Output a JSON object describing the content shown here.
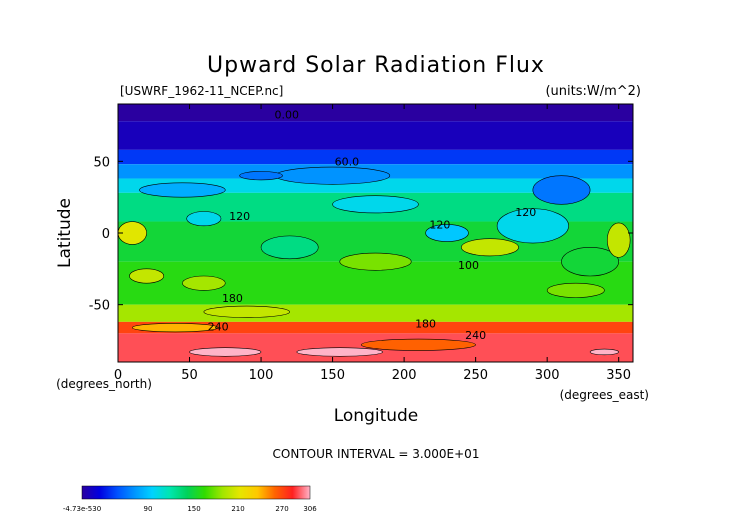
{
  "chart_data": {
    "type": "heatmap",
    "title": "Upward Solar Radiation Flux",
    "file_label": "[USWRF_1962-11_NCEP.nc]",
    "units_label": "(units:W/m^2)",
    "xlabel": "Longitude",
    "ylabel": "Latitude",
    "x_unit_label": "(degrees_east)",
    "y_unit_label": "(degrees_north)",
    "xlim": [
      0,
      360
    ],
    "ylim": [
      -90,
      90
    ],
    "x_ticks": [
      0,
      50,
      100,
      150,
      200,
      250,
      300,
      350
    ],
    "y_ticks": [
      50,
      0,
      -50
    ],
    "contour_interval_text": "CONTOUR INTERVAL = 3.000E+01",
    "contour_labels": [
      {
        "text": "0.00",
        "lon": 118,
        "lat": 80
      },
      {
        "text": "60.0",
        "lon": 160,
        "lat": 47
      },
      {
        "text": "120",
        "lon": 85,
        "lat": 9
      },
      {
        "text": "120",
        "lon": 285,
        "lat": 12
      },
      {
        "text": "120",
        "lon": 225,
        "lat": 3
      },
      {
        "text": "100",
        "lon": 245,
        "lat": -25
      },
      {
        "text": "180",
        "lon": 80,
        "lat": -48
      },
      {
        "text": "180",
        "lon": 215,
        "lat": -66
      },
      {
        "text": "240",
        "lon": 70,
        "lat": -68
      },
      {
        "text": "240",
        "lon": 250,
        "lat": -74
      }
    ],
    "lat_bands": [
      {
        "lat_top": 90,
        "lat_bot": 78,
        "value": 0
      },
      {
        "lat_top": 78,
        "lat_bot": 58,
        "value": 10
      },
      {
        "lat_top": 58,
        "lat_bot": 48,
        "value": 40
      },
      {
        "lat_top": 48,
        "lat_bot": 38,
        "value": 70
      },
      {
        "lat_top": 38,
        "lat_bot": 28,
        "value": 100
      },
      {
        "lat_top": 28,
        "lat_bot": 8,
        "value": 130
      },
      {
        "lat_top": 8,
        "lat_bot": -20,
        "value": 150
      },
      {
        "lat_top": -20,
        "lat_bot": -50,
        "value": 160
      },
      {
        "lat_top": -50,
        "lat_bot": -62,
        "value": 190
      },
      {
        "lat_top": -62,
        "lat_bot": -70,
        "value": 270
      },
      {
        "lat_top": -70,
        "lat_bot": -90,
        "value": 290
      }
    ],
    "blobs": [
      {
        "lon": 10,
        "lat": 0,
        "rlon": 10,
        "rlat": 8,
        "value": 210
      },
      {
        "lon": 20,
        "lat": -30,
        "rlon": 12,
        "rlat": 5,
        "value": 200
      },
      {
        "lon": 60,
        "lat": -35,
        "rlon": 15,
        "rlat": 5,
        "value": 190
      },
      {
        "lon": 60,
        "lat": 10,
        "rlon": 12,
        "rlat": 5,
        "value": 100
      },
      {
        "lon": 45,
        "lat": 30,
        "rlon": 30,
        "rlat": 5,
        "value": 80
      },
      {
        "lon": 150,
        "lat": 40,
        "rlon": 40,
        "rlat": 6,
        "value": 70
      },
      {
        "lon": 120,
        "lat": -10,
        "rlon": 20,
        "rlat": 8,
        "value": 130
      },
      {
        "lon": 180,
        "lat": -20,
        "rlon": 25,
        "rlat": 6,
        "value": 180
      },
      {
        "lon": 230,
        "lat": 0,
        "rlon": 15,
        "rlat": 6,
        "value": 90
      },
      {
        "lon": 260,
        "lat": -10,
        "rlon": 20,
        "rlat": 6,
        "value": 200
      },
      {
        "lon": 290,
        "lat": 5,
        "rlon": 25,
        "rlat": 12,
        "value": 100
      },
      {
        "lon": 310,
        "lat": 30,
        "rlon": 20,
        "rlat": 10,
        "value": 60
      },
      {
        "lon": 330,
        "lat": -20,
        "rlon": 20,
        "rlat": 10,
        "value": 150
      },
      {
        "lon": 350,
        "lat": -5,
        "rlon": 8,
        "rlat": 12,
        "value": 200
      },
      {
        "lon": 180,
        "lat": 20,
        "rlon": 30,
        "rlat": 6,
        "value": 100
      },
      {
        "lon": 100,
        "lat": 40,
        "rlon": 15,
        "rlat": 3,
        "value": 60
      },
      {
        "lon": 320,
        "lat": -40,
        "rlon": 20,
        "rlat": 5,
        "value": 180
      },
      {
        "lon": 90,
        "lat": -55,
        "rlon": 30,
        "rlat": 4,
        "value": 200
      },
      {
        "lon": 40,
        "lat": -66,
        "rlon": 30,
        "rlat": 3,
        "value": 240
      },
      {
        "lon": 210,
        "lat": -78,
        "rlon": 40,
        "rlat": 4,
        "value": 260
      },
      {
        "lon": 75,
        "lat": -83,
        "rlon": 25,
        "rlat": 3,
        "value": 306
      },
      {
        "lon": 155,
        "lat": -83,
        "rlon": 30,
        "rlat": 3,
        "value": 306
      },
      {
        "lon": 340,
        "lat": -83,
        "rlon": 10,
        "rlat": 2,
        "value": 306
      }
    ],
    "colorbar": {
      "min": 0,
      "max": 306,
      "stops": [
        "#2a00a0",
        "#0000e0",
        "#0050ff",
        "#0095ff",
        "#00d2ff",
        "#00e6b0",
        "#00d25a",
        "#32dc00",
        "#a0e600",
        "#e6e600",
        "#ffc800",
        "#ff6400",
        "#ff2020",
        "#ffb4c8"
      ],
      "tick_labels": [
        "-4.73e-530",
        "90",
        "150",
        "210",
        "270",
        "306"
      ]
    }
  }
}
